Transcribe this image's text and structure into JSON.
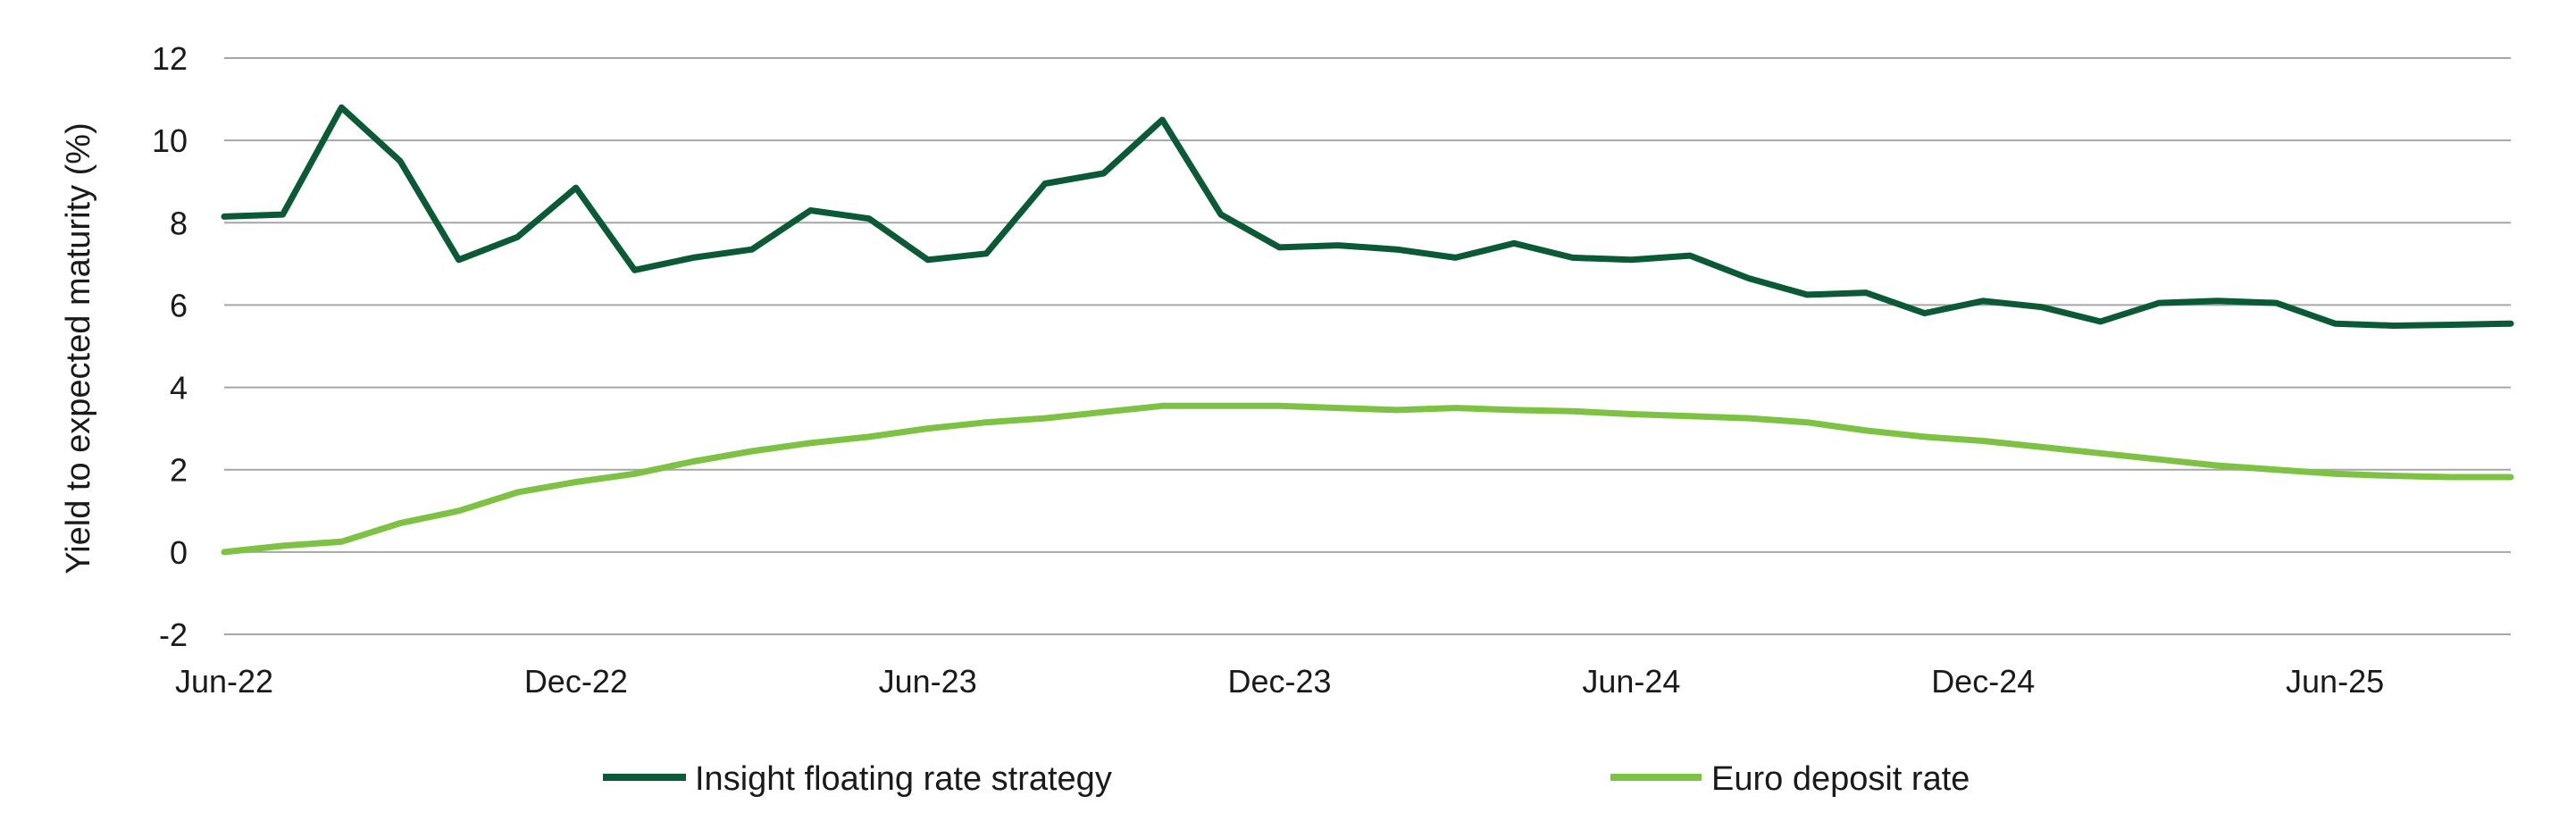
{
  "chart_data": {
    "type": "line",
    "title": "",
    "xlabel": "",
    "ylabel": "Yield to expected maturity (%)",
    "ylim": [
      -2,
      12
    ],
    "yticks": [
      "-2",
      "0",
      "2",
      "4",
      "6",
      "8",
      "10",
      "12"
    ],
    "xtick_labels": [
      "Jun-22",
      "Dec-22",
      "Jun-23",
      "Dec-23",
      "Jun-24",
      "Dec-24",
      "Jun-25"
    ],
    "x": [
      "Jun-22",
      "Jul-22",
      "Aug-22",
      "Sep-22",
      "Oct-22",
      "Nov-22",
      "Dec-22",
      "Jan-23",
      "Feb-23",
      "Mar-23",
      "Apr-23",
      "May-23",
      "Jun-23",
      "Jul-23",
      "Aug-23",
      "Sep-23",
      "Oct-23",
      "Nov-23",
      "Dec-23",
      "Jan-24",
      "Feb-24",
      "Mar-24",
      "Apr-24",
      "May-24",
      "Jun-24",
      "Jul-24",
      "Aug-24",
      "Sep-24",
      "Oct-24",
      "Nov-24",
      "Dec-24",
      "Jan-25",
      "Feb-25",
      "Mar-25",
      "Apr-25",
      "May-25",
      "Jun-25",
      "Jul-25",
      "Aug-25",
      "Sep-25"
    ],
    "grid": "horizontal",
    "legend_placement": "bottom",
    "series": [
      {
        "name": "Insight floating rate strategy",
        "color": "#0b5a36",
        "values": [
          8.15,
          8.2,
          10.8,
          9.5,
          7.1,
          7.65,
          8.85,
          6.85,
          7.15,
          7.35,
          8.3,
          8.1,
          7.1,
          7.25,
          8.95,
          9.2,
          10.5,
          8.2,
          7.4,
          7.45,
          7.35,
          7.15,
          7.5,
          7.15,
          7.1,
          7.2,
          6.65,
          6.25,
          6.3,
          5.8,
          6.1,
          5.95,
          5.6,
          6.05,
          6.1,
          6.05,
          5.55,
          5.5,
          5.52,
          5.55
        ]
      },
      {
        "name": "Euro deposit rate",
        "color": "#7dc242",
        "values": [
          0,
          0.15,
          0.25,
          0.7,
          1.0,
          1.45,
          1.7,
          1.9,
          2.2,
          2.45,
          2.65,
          2.8,
          3.0,
          3.15,
          3.25,
          3.4,
          3.55,
          3.55,
          3.55,
          3.5,
          3.45,
          3.5,
          3.45,
          3.42,
          3.35,
          3.3,
          3.25,
          3.15,
          2.95,
          2.8,
          2.7,
          2.55,
          2.4,
          2.25,
          2.1,
          2.0,
          1.9,
          1.85,
          1.82,
          1.82
        ]
      }
    ]
  }
}
